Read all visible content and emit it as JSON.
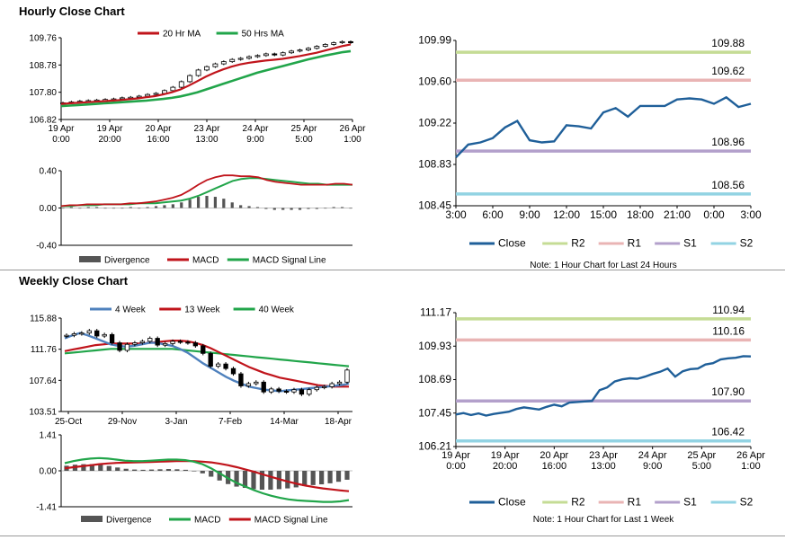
{
  "sections": {
    "hourly_title": "Hourly Close Chart",
    "weekly_title": "Weekly Close Chart"
  },
  "chart_data": [
    {
      "id": "hourly-price",
      "type": "line",
      "legend": [
        "20 Hr MA",
        "50 Hrs MA"
      ],
      "colors": {
        "ma20": "#c0141b",
        "ma50": "#21a54a",
        "candle": "#000000"
      },
      "yticks": [
        "109.76",
        "108.78",
        "107.80",
        "106.82"
      ],
      "ylim": [
        106.82,
        109.76
      ],
      "xticks": [
        [
          "19 Apr",
          "0:00"
        ],
        [
          "19 Apr",
          "20:00"
        ],
        [
          "20 Apr",
          "16:00"
        ],
        [
          "23 Apr",
          "13:00"
        ],
        [
          "24 Apr",
          "9:00"
        ],
        [
          "25 Apr",
          "5:00"
        ],
        [
          "26 Apr",
          "1:00"
        ]
      ],
      "close": [
        107.42,
        107.45,
        107.48,
        107.5,
        107.52,
        107.54,
        107.56,
        107.6,
        107.62,
        107.66,
        107.72,
        107.76,
        107.86,
        107.98,
        108.18,
        108.4,
        108.6,
        108.72,
        108.82,
        108.9,
        108.98,
        109.02,
        109.08,
        109.12,
        109.18,
        109.14,
        109.22,
        109.28,
        109.32,
        109.38,
        109.45,
        109.52,
        109.58,
        109.62,
        109.58
      ],
      "ma20": [
        107.38,
        107.4,
        107.42,
        107.44,
        107.46,
        107.48,
        107.5,
        107.52,
        107.55,
        107.58,
        107.62,
        107.66,
        107.72,
        107.8,
        107.9,
        108.04,
        108.2,
        108.36,
        108.5,
        108.62,
        108.72,
        108.8,
        108.86,
        108.9,
        108.94,
        108.97,
        109.0,
        109.05,
        109.1,
        109.16,
        109.22,
        109.3,
        109.38,
        109.46,
        109.52
      ],
      "ma50": [
        107.3,
        107.32,
        107.34,
        107.36,
        107.38,
        107.4,
        107.42,
        107.44,
        107.46,
        107.48,
        107.5,
        107.53,
        107.56,
        107.6,
        107.65,
        107.72,
        107.8,
        107.9,
        108.0,
        108.1,
        108.2,
        108.3,
        108.4,
        108.5,
        108.58,
        108.66,
        108.74,
        108.82,
        108.9,
        108.98,
        109.05,
        109.12,
        109.18,
        109.24,
        109.28
      ]
    },
    {
      "id": "hourly-macd",
      "type": "bar",
      "legend": [
        "Divergence",
        "MACD",
        "MACD Signal Line"
      ],
      "colors": {
        "divergence": "#555555",
        "macd": "#c0141b",
        "signal": "#21a54a"
      },
      "yticks": [
        "0.40",
        "0.00",
        "-0.40"
      ],
      "ylim": [
        -0.4,
        0.4
      ],
      "macd": [
        0.02,
        0.03,
        0.03,
        0.04,
        0.04,
        0.04,
        0.04,
        0.04,
        0.05,
        0.05,
        0.06,
        0.07,
        0.09,
        0.11,
        0.14,
        0.19,
        0.25,
        0.3,
        0.33,
        0.35,
        0.35,
        0.34,
        0.34,
        0.33,
        0.3,
        0.28,
        0.27,
        0.26,
        0.25,
        0.25,
        0.25,
        0.25,
        0.26,
        0.26,
        0.25
      ],
      "signal": [
        0.02,
        0.02,
        0.03,
        0.03,
        0.03,
        0.04,
        0.04,
        0.04,
        0.04,
        0.05,
        0.05,
        0.05,
        0.06,
        0.07,
        0.08,
        0.1,
        0.13,
        0.17,
        0.21,
        0.25,
        0.29,
        0.31,
        0.32,
        0.32,
        0.31,
        0.3,
        0.29,
        0.28,
        0.27,
        0.26,
        0.26,
        0.25,
        0.25,
        0.25,
        0.25
      ],
      "divergence": [
        0.0,
        0.01,
        0.0,
        0.01,
        0.01,
        0.0,
        0.0,
        0.0,
        0.01,
        0.0,
        0.01,
        0.02,
        0.03,
        0.04,
        0.06,
        0.09,
        0.12,
        0.13,
        0.12,
        0.1,
        0.06,
        0.03,
        0.02,
        0.01,
        -0.01,
        -0.02,
        -0.02,
        -0.02,
        -0.02,
        -0.01,
        -0.01,
        0.0,
        0.01,
        0.01,
        0.0
      ]
    },
    {
      "id": "hourly-pivot",
      "type": "line",
      "legend": [
        "Close",
        "R2",
        "R1",
        "S1",
        "S2"
      ],
      "colors": {
        "close": "#1f5f99",
        "r2": "#c5dc95",
        "r1": "#e9b4b4",
        "s1": "#b3a0cb",
        "s2": "#92d3e3"
      },
      "yticks": [
        "109.99",
        "109.60",
        "109.22",
        "108.83",
        "108.45"
      ],
      "ylim": [
        108.45,
        109.99
      ],
      "xticks": [
        "3:00",
        "6:00",
        "9:00",
        "12:00",
        "15:00",
        "18:00",
        "21:00",
        "0:00",
        "3:00"
      ],
      "levels": {
        "r2": 109.88,
        "r1": 109.62,
        "s1": 108.96,
        "s2": 108.56
      },
      "level_labels": {
        "r2": "109.88",
        "r1": "109.62",
        "s1": "108.96",
        "s2": "108.56"
      },
      "close": [
        108.9,
        109.02,
        109.04,
        109.08,
        109.18,
        109.24,
        109.06,
        109.04,
        109.05,
        109.2,
        109.19,
        109.17,
        109.32,
        109.36,
        109.28,
        109.38,
        109.38,
        109.38,
        109.44,
        109.45,
        109.44,
        109.4,
        109.46,
        109.37,
        109.4
      ],
      "note": "Note: 1 Hour Chart for Last 24 Hours"
    },
    {
      "id": "weekly-price",
      "type": "line",
      "legend": [
        "4 Week",
        "13 Week",
        "40 Week"
      ],
      "colors": {
        "w4": "#4f81bd",
        "w13": "#c0141b",
        "w40": "#21a54a",
        "candle": "#000000"
      },
      "yticks": [
        "115.88",
        "111.76",
        "107.64",
        "103.51"
      ],
      "ylim": [
        103.51,
        115.88
      ],
      "xticks": [
        "25-Oct",
        "29-Nov",
        "3-Jan",
        "7-Feb",
        "14-Mar",
        "18-Apr"
      ],
      "close": [
        113.6,
        113.8,
        113.9,
        114.2,
        113.5,
        113.7,
        112.6,
        111.6,
        112.4,
        112.6,
        112.8,
        113.2,
        112.3,
        112.5,
        112.8,
        112.7,
        112.6,
        112.2,
        111.2,
        109.5,
        109.8,
        109.2,
        108.5,
        106.9,
        107.2,
        107.4,
        106.1,
        106.5,
        106.2,
        106.1,
        106.4,
        105.8,
        106.4,
        106.7,
        106.8,
        107.2,
        107.4,
        109.0
      ],
      "w4": [
        113.2,
        113.6,
        113.9,
        113.6,
        113.2,
        112.8,
        112.4,
        112.2,
        112.1,
        112.2,
        112.4,
        112.6,
        112.6,
        112.4,
        112.2,
        111.8,
        111.3,
        110.6,
        109.9,
        109.3,
        108.7,
        108.1,
        107.6,
        107.2,
        106.8,
        106.6,
        106.4,
        106.3,
        106.2,
        106.3,
        106.4,
        106.5,
        106.6,
        106.7,
        106.8,
        106.9,
        107.0,
        107.2
      ],
      "w13": [
        111.5,
        111.7,
        111.9,
        112.1,
        112.3,
        112.4,
        112.5,
        112.5,
        112.5,
        112.5,
        112.5,
        112.6,
        112.7,
        112.8,
        112.9,
        112.9,
        112.8,
        112.6,
        112.3,
        111.9,
        111.4,
        110.9,
        110.4,
        109.9,
        109.4,
        109.0,
        108.6,
        108.3,
        108.0,
        107.8,
        107.6,
        107.4,
        107.2,
        107.0,
        106.9,
        106.8,
        106.8,
        106.8
      ],
      "w40": [
        111.2,
        111.3,
        111.4,
        111.5,
        111.6,
        111.7,
        111.8,
        111.8,
        111.8,
        111.8,
        111.8,
        111.8,
        111.8,
        111.8,
        111.8,
        111.7,
        111.6,
        111.5,
        111.4,
        111.3,
        111.2,
        111.1,
        111.0,
        110.9,
        110.8,
        110.7,
        110.6,
        110.5,
        110.4,
        110.3,
        110.2,
        110.1,
        110.0,
        109.9,
        109.8,
        109.7,
        109.6,
        109.5
      ]
    },
    {
      "id": "weekly-macd",
      "type": "bar",
      "legend": [
        "Divergence",
        "MACD",
        "MACD Signal Line"
      ],
      "colors": {
        "divergence": "#555555",
        "macd": "#21a54a",
        "signal": "#c0141b"
      },
      "yticks": [
        "1.41",
        "0.00",
        "-1.41"
      ],
      "ylim": [
        -1.41,
        1.41
      ],
      "macd": [
        0.3,
        0.38,
        0.44,
        0.48,
        0.5,
        0.48,
        0.44,
        0.4,
        0.38,
        0.38,
        0.4,
        0.42,
        0.44,
        0.44,
        0.42,
        0.36,
        0.26,
        0.1,
        -0.1,
        -0.3,
        -0.48,
        -0.62,
        -0.76,
        -0.88,
        -0.98,
        -1.06,
        -1.12,
        -1.16,
        -1.18,
        -1.2,
        -1.22,
        -1.22,
        -1.2,
        -1.15
      ],
      "signal": [
        0.1,
        0.14,
        0.18,
        0.22,
        0.26,
        0.29,
        0.31,
        0.32,
        0.33,
        0.34,
        0.35,
        0.36,
        0.37,
        0.38,
        0.38,
        0.38,
        0.36,
        0.33,
        0.28,
        0.22,
        0.14,
        0.05,
        -0.04,
        -0.14,
        -0.24,
        -0.34,
        -0.43,
        -0.51,
        -0.58,
        -0.64,
        -0.69,
        -0.73,
        -0.77,
        -0.8
      ],
      "divergence": [
        0.2,
        0.24,
        0.26,
        0.26,
        0.24,
        0.19,
        0.13,
        0.08,
        0.05,
        0.04,
        0.05,
        0.06,
        0.07,
        0.06,
        0.04,
        -0.02,
        -0.1,
        -0.23,
        -0.38,
        -0.52,
        -0.62,
        -0.67,
        -0.72,
        -0.74,
        -0.74,
        -0.72,
        -0.69,
        -0.65,
        -0.6,
        -0.56,
        -0.53,
        -0.49,
        -0.43,
        -0.35
      ]
    },
    {
      "id": "weekly-pivot",
      "type": "line",
      "legend": [
        "Close",
        "R2",
        "R1",
        "S1",
        "S2"
      ],
      "colors": {
        "close": "#1f5f99",
        "r2": "#c5dc95",
        "r1": "#e9b4b4",
        "s1": "#b3a0cb",
        "s2": "#92d3e3"
      },
      "yticks": [
        "111.17",
        "109.93",
        "108.69",
        "107.45",
        "106.21"
      ],
      "ylim": [
        106.21,
        111.17
      ],
      "xticks": [
        [
          "19 Apr",
          "0:00"
        ],
        [
          "19 Apr",
          "20:00"
        ],
        [
          "20 Apr",
          "16:00"
        ],
        [
          "23 Apr",
          "13:00"
        ],
        [
          "24 Apr",
          "9:00"
        ],
        [
          "25 Apr",
          "5:00"
        ],
        [
          "26 Apr",
          "1:00"
        ]
      ],
      "levels": {
        "r2": 110.94,
        "r1": 110.16,
        "s1": 107.9,
        "s2": 106.42
      },
      "level_labels": {
        "r2": "110.94",
        "r1": "110.16",
        "s1": "107.90",
        "s2": "106.42"
      },
      "close": [
        107.4,
        107.45,
        107.38,
        107.44,
        107.36,
        107.42,
        107.46,
        107.5,
        107.6,
        107.66,
        107.62,
        107.58,
        107.68,
        107.76,
        107.7,
        107.84,
        107.86,
        107.88,
        107.9,
        108.3,
        108.4,
        108.62,
        108.7,
        108.74,
        108.72,
        108.8,
        108.9,
        108.98,
        109.1,
        108.8,
        109.0,
        109.08,
        109.1,
        109.25,
        109.3,
        109.44,
        109.48,
        109.5,
        109.56,
        109.55
      ],
      "note": "Note: 1 Hour Chart for Last 1 Week"
    }
  ]
}
